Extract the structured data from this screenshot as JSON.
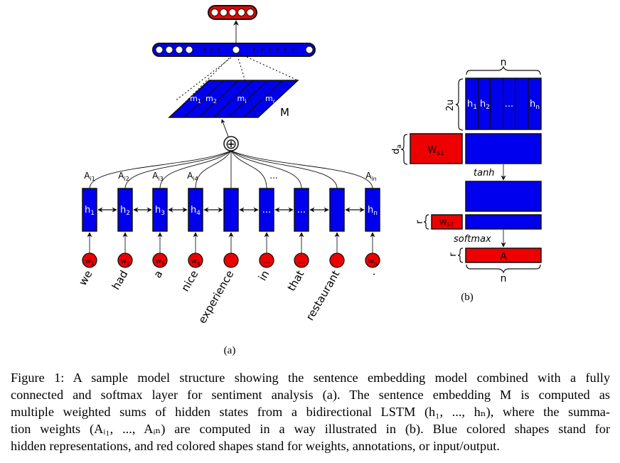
{
  "colors": {
    "blue": "#0000ee",
    "red": "#ee0000",
    "stroke": "#111111"
  },
  "figure_a": {
    "output_units": 5,
    "matrix_label": "M",
    "matrix_columns": [
      {
        "base": "m",
        "sub": "1"
      },
      {
        "base": "m",
        "sub": "2"
      },
      {
        "base": "m",
        "sub": "i"
      },
      {
        "base": "m",
        "sub": "r"
      }
    ],
    "sum_symbol": "⊕",
    "attention_labels": [
      {
        "base": "A",
        "sub": "i1"
      },
      {
        "base": "A",
        "sub": "i2"
      },
      {
        "base": "A",
        "sub": "i3"
      },
      {
        "base": "A",
        "sub": "i4"
      },
      {
        "base": "...",
        "sub": ""
      },
      {
        "base": "A",
        "sub": "in"
      }
    ],
    "hidden_states": [
      {
        "base": "h",
        "sub": "1"
      },
      {
        "base": "h",
        "sub": "2"
      },
      {
        "base": "h",
        "sub": "3"
      },
      {
        "base": "h",
        "sub": "4"
      },
      {
        "base": "",
        "sub": ""
      },
      {
        "base": "...",
        "sub": ""
      },
      {
        "base": "...",
        "sub": ""
      },
      {
        "base": "",
        "sub": ""
      },
      {
        "base": "h",
        "sub": "n"
      }
    ],
    "inputs": [
      {
        "base": "w",
        "sub": "1"
      },
      {
        "base": "w",
        "sub": "2"
      },
      {
        "base": "w",
        "sub": "3"
      },
      {
        "base": "w",
        "sub": "4"
      },
      {
        "base": "",
        "sub": ""
      },
      {
        "base": "...",
        "sub": ""
      },
      {
        "base": "...",
        "sub": ""
      },
      {
        "base": "",
        "sub": ""
      },
      {
        "base": "w",
        "sub": "n"
      }
    ],
    "words": [
      "we",
      "had",
      "a",
      "nice",
      "experience",
      "in",
      "that",
      "restaurant",
      "."
    ],
    "panel_label": "(a)"
  },
  "figure_b": {
    "top_dim": "n",
    "height_dim": "2u",
    "columns": [
      {
        "base": "h",
        "sub": "1"
      },
      {
        "base": "h",
        "sub": "2"
      },
      {
        "base": "...",
        "sub": ""
      },
      {
        "base": "h",
        "sub": "n"
      }
    ],
    "da_label": {
      "base": "d",
      "sub": "a"
    },
    "ws1_label": {
      "base": "W",
      "sub": "s1"
    },
    "tanh_label": "tanh",
    "r_label_1": "r",
    "ws2_label": {
      "base": "W",
      "sub": "s2"
    },
    "softmax_label": "softmax",
    "r_label_2": "r",
    "a_label": "A",
    "bottom_dim": "n",
    "panel_label": "(b)"
  },
  "caption": {
    "lines": [
      "Figure 1: A sample model structure showing the sentence embedding model combined with a fully",
      "connected and softmax layer for sentiment analysis (a). The sentence embedding M is computed as",
      "multiple weighted sums of hidden states from a bidirectional LSTM (h₁, ..., hₙ), where the summa-",
      "tion weights (Aᵢ₁, ..., Aᵢₙ) are computed in a way illustrated in (b). Blue colored shapes stand for",
      "hidden representations, and red colored shapes stand for weights, annotations, or input/output."
    ]
  }
}
